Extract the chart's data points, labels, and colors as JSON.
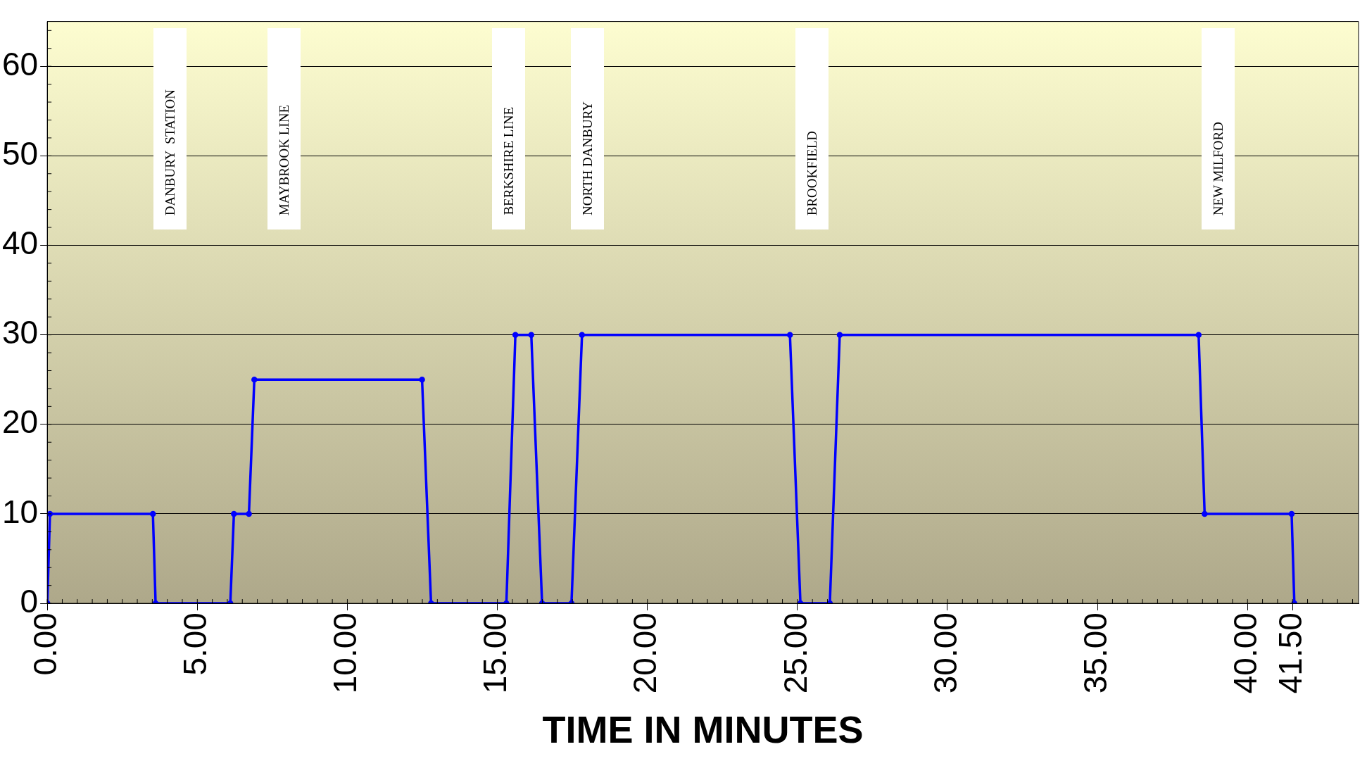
{
  "chart_data": {
    "type": "line",
    "xlabel": "TIME IN MINUTES",
    "xlim": [
      0,
      43.7
    ],
    "xticks": [
      {
        "value": 0,
        "label": "0.00"
      },
      {
        "value": 5,
        "label": "5.00"
      },
      {
        "value": 10,
        "label": "10.00"
      },
      {
        "value": 15,
        "label": "15.00"
      },
      {
        "value": 20,
        "label": "20.00"
      },
      {
        "value": 25,
        "label": "25.00"
      },
      {
        "value": 30,
        "label": "30.00"
      },
      {
        "value": 35,
        "label": "35.00"
      },
      {
        "value": 40,
        "label": "40.00"
      },
      {
        "value": 41.5,
        "label": "41.50"
      }
    ],
    "ylim": [
      0,
      65
    ],
    "yticks": [
      0,
      10,
      20,
      30,
      40,
      50,
      60
    ],
    "grid": "y",
    "legend": false,
    "marker": "circle",
    "line_style": "solid",
    "series": [
      {
        "color": "#0000ff",
        "x": [
          0,
          0.09,
          3.52,
          3.61,
          6.1,
          6.22,
          6.72,
          6.9,
          12.49,
          12.79,
          15.3,
          15.6,
          16.13,
          16.49,
          17.47,
          17.82,
          24.75,
          25.1,
          26.08,
          26.41,
          38.37,
          38.57,
          41.47,
          41.56
        ],
        "values": [
          0,
          10,
          10,
          0,
          0,
          10,
          10,
          25,
          25,
          0,
          0,
          30,
          30,
          0,
          0,
          30,
          30,
          0,
          0,
          30,
          30,
          10,
          10,
          0
        ]
      }
    ],
    "annotations": [
      "DANBURY  STATION",
      "MAYBROOK LINE",
      "BERKSHIRE LINE",
      "NORTH DANBURY",
      "BROOKFIELD",
      "NEW MILFORD"
    ]
  }
}
